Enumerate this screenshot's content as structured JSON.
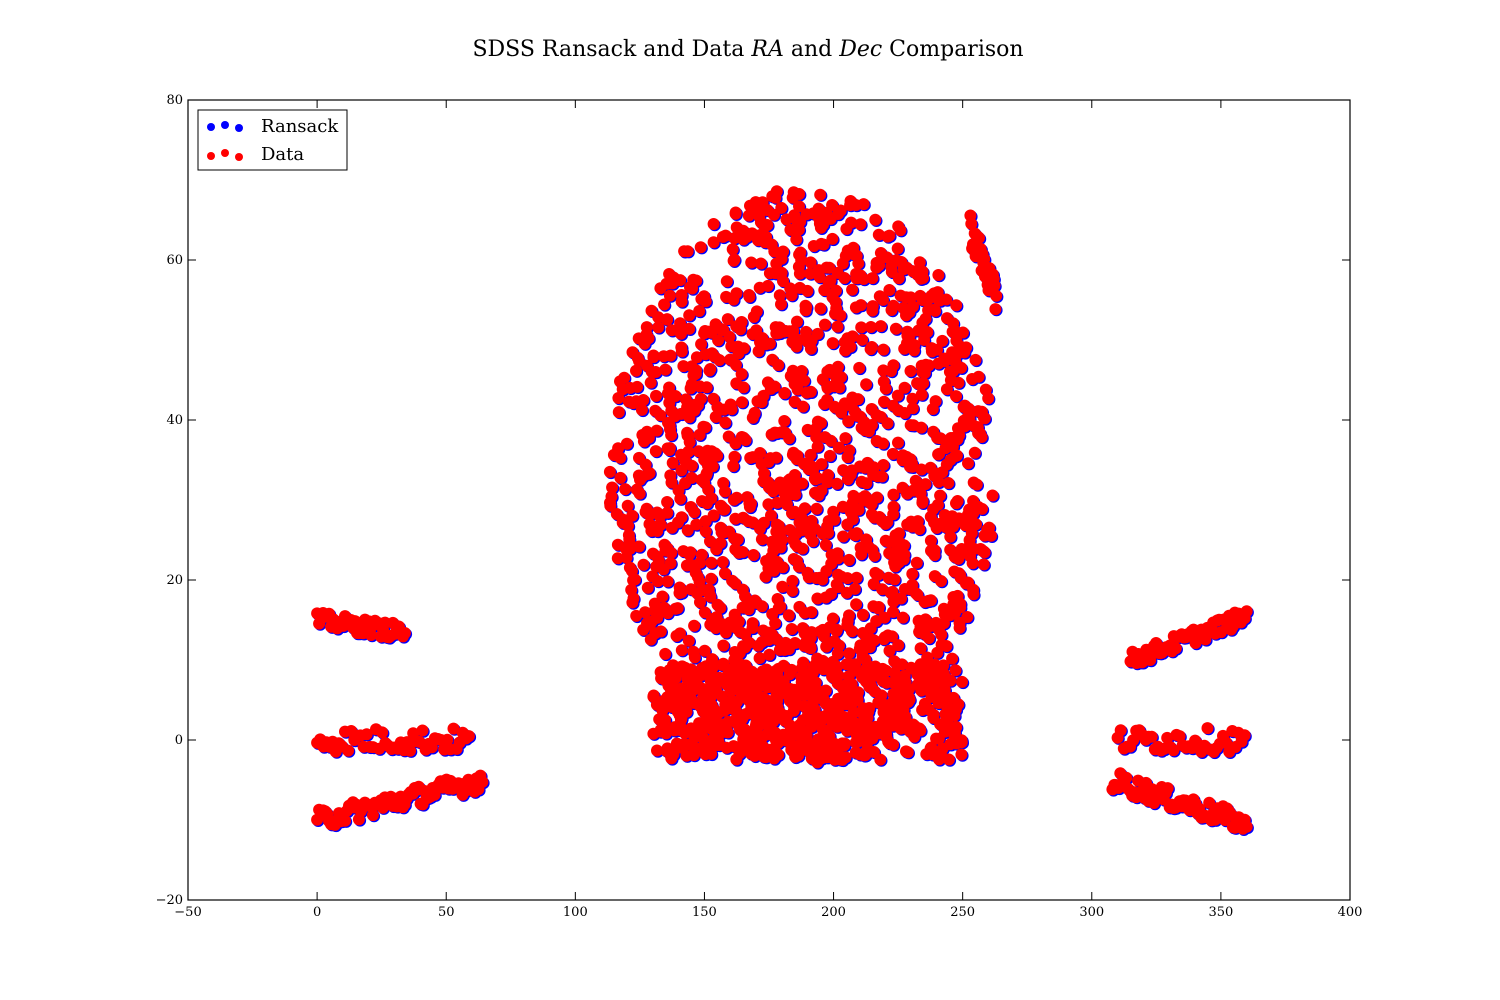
{
  "chart_data": {
    "type": "scatter",
    "title": "SDSS Ransack and Data RA and Dec Comparison",
    "title_parts": [
      "SDSS Ransack and Data ",
      "RA",
      " and ",
      "Dec",
      " Comparison"
    ],
    "xlabel": "",
    "ylabel": "",
    "xlim": [
      -50,
      400
    ],
    "ylim": [
      -20,
      80
    ],
    "xticks": [
      -50,
      0,
      50,
      100,
      150,
      200,
      250,
      300,
      350,
      400
    ],
    "yticks": [
      -20,
      0,
      20,
      40,
      60,
      80
    ],
    "xtick_labels": [
      "−50",
      "0",
      "50",
      "100",
      "150",
      "200",
      "250",
      "300",
      "350",
      "400"
    ],
    "ytick_labels": [
      "−20",
      "0",
      "20",
      "40",
      "60",
      "80"
    ],
    "grid": false,
    "legend_position": "top-left",
    "series": [
      {
        "name": "Ransack",
        "color": "#0000ff",
        "regions": [
          {
            "kind": "ellipse",
            "cx": 188,
            "cy": 33,
            "rx": 75,
            "ry": 36
          },
          {
            "kind": "band",
            "ra": [
              0,
              60
            ],
            "dec": [
              -1.5,
              1.5
            ]
          },
          {
            "kind": "band",
            "ra": [
              310,
              360
            ],
            "dec": [
              -1.5,
              1.5
            ]
          },
          {
            "kind": "arc",
            "ra": [
              0,
              34
            ],
            "dec_start": 15,
            "dec_end": 13.5,
            "width": 2
          },
          {
            "kind": "arc",
            "ra": [
              0,
              64
            ],
            "dec_start": -10,
            "dec_end": -5,
            "width": 2.5
          },
          {
            "kind": "arc",
            "ra": [
              315,
              360
            ],
            "dec_start": 10,
            "dec_end": 15.5,
            "width": 2
          },
          {
            "kind": "arc",
            "ra": [
              308,
              360
            ],
            "dec_start": -5,
            "dec_end": -10.5,
            "width": 2.5
          },
          {
            "kind": "arc",
            "ra": [
              253,
              263
            ],
            "dec_start": 64,
            "dec_end": 55,
            "width": 4
          }
        ]
      },
      {
        "name": "Data",
        "color": "#ff0000",
        "regions": [
          {
            "kind": "ellipse",
            "cx": 188,
            "cy": 33,
            "rx": 75,
            "ry": 36
          },
          {
            "kind": "band",
            "ra": [
              0,
              60
            ],
            "dec": [
              -1.5,
              1.5
            ]
          },
          {
            "kind": "band",
            "ra": [
              310,
              360
            ],
            "dec": [
              -1.5,
              1.5
            ]
          },
          {
            "kind": "arc",
            "ra": [
              0,
              34
            ],
            "dec_start": 15,
            "dec_end": 13.5,
            "width": 2
          },
          {
            "kind": "arc",
            "ra": [
              0,
              64
            ],
            "dec_start": -10,
            "dec_end": -5,
            "width": 2.5
          },
          {
            "kind": "arc",
            "ra": [
              315,
              360
            ],
            "dec_start": 10,
            "dec_end": 15.5,
            "width": 2
          },
          {
            "kind": "arc",
            "ra": [
              308,
              360
            ],
            "dec_start": -5,
            "dec_end": -10.5,
            "width": 2.5
          },
          {
            "kind": "arc",
            "ra": [
              253,
              263
            ],
            "dec_start": 64,
            "dec_end": 55,
            "width": 4
          }
        ]
      }
    ]
  }
}
